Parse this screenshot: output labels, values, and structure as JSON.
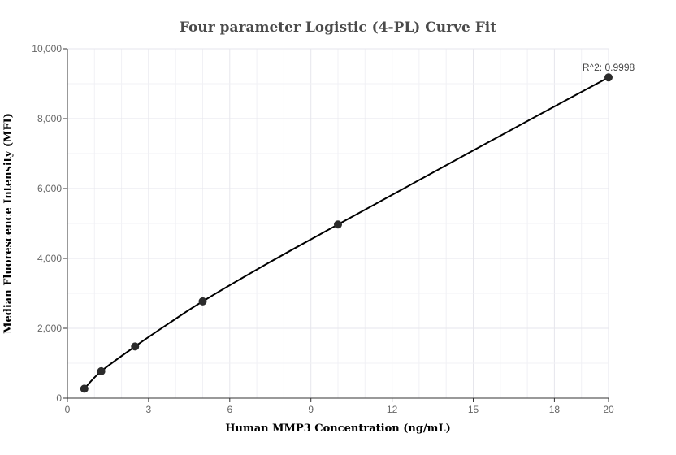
{
  "chart_data": {
    "type": "scatter",
    "title": "Four parameter Logistic (4-PL) Curve Fit",
    "xlabel": "Human MMP3 Concentration (ng/mL)",
    "ylabel": "Median Fluorescence Intensity (MFI)",
    "xlim": [
      0,
      20
    ],
    "ylim": [
      0,
      10000
    ],
    "x_ticks": [
      0,
      3,
      6,
      9,
      12,
      15,
      18,
      20
    ],
    "x_tick_labels": [
      "0",
      "3",
      "6",
      "9",
      "12",
      "15",
      "18",
      "20"
    ],
    "y_ticks": [
      0,
      2000,
      4000,
      6000,
      8000,
      10000
    ],
    "y_tick_labels": [
      "0",
      "2,000",
      "4,000",
      "6,000",
      "8,000",
      "10,000"
    ],
    "grid": true,
    "points": {
      "x": [
        0.625,
        1.25,
        2.5,
        5,
        10,
        20
      ],
      "y": [
        270,
        770,
        1480,
        2770,
        4970,
        9180
      ]
    },
    "fit_curve": {
      "x": [
        0.625,
        1.25,
        2.5,
        3.75,
        5,
        7.5,
        10,
        12.5,
        15,
        17.5,
        20
      ],
      "y": [
        270,
        770,
        1480,
        2140,
        2770,
        3900,
        4970,
        6030,
        7090,
        8140,
        9180
      ]
    },
    "annotation": "R^2: 0.9998"
  }
}
